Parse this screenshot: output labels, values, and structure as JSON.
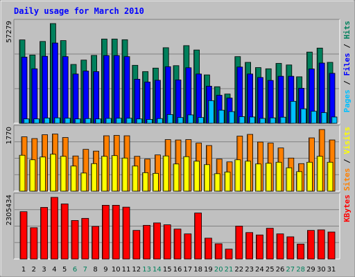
{
  "title": "Daily usage for March 2010",
  "colors": {
    "background": "#c0c0c0",
    "frame_light": "#ffffff",
    "frame_dark": "#808080",
    "title_text": "#0000ff",
    "hits": "#00805c",
    "files": "#0000ff",
    "pages": "#00c0ff",
    "visits": "#ffff00",
    "sites": "#ff8000",
    "kbytes": "#ff0000",
    "weekend_label": "#00805c",
    "weekday_label": "#000000"
  },
  "chart_data": [
    {
      "type": "bar",
      "title": "Daily usage for March 2010",
      "ylabel_max": "57279",
      "ylim": [
        0,
        57279
      ],
      "legend": [
        "Pages",
        "/",
        "Files",
        "/",
        "Hits"
      ],
      "categories": [
        "1",
        "2",
        "3",
        "4",
        "5",
        "6",
        "7",
        "8",
        "9",
        "10",
        "11",
        "12",
        "13",
        "14",
        "15",
        "16",
        "17",
        "18",
        "19",
        "20",
        "21",
        "22",
        "23",
        "24",
        "25",
        "26",
        "27",
        "28",
        "29",
        "30",
        "31"
      ],
      "weekend_days": [
        6,
        7,
        13,
        14,
        20,
        21,
        27,
        28
      ],
      "series": [
        {
          "name": "Hits",
          "values": [
            47900,
            39200,
            47000,
            57279,
            47500,
            33800,
            36300,
            39000,
            48400,
            48400,
            48000,
            33300,
            29700,
            31700,
            43400,
            33100,
            44600,
            42100,
            27800,
            21000,
            16800,
            38300,
            35000,
            32000,
            31300,
            34400,
            33500,
            26700,
            40900,
            43200,
            35000
          ]
        },
        {
          "name": "Files",
          "values": [
            38000,
            31300,
            38500,
            46100,
            38300,
            28300,
            30000,
            29700,
            38900,
            38900,
            38300,
            25300,
            23700,
            24700,
            32500,
            24900,
            31900,
            28300,
            21300,
            16100,
            14500,
            32300,
            28300,
            26300,
            24600,
            27000,
            27000,
            20100,
            31200,
            34600,
            28700
          ]
        },
        {
          "name": "Pages",
          "values": [
            2500,
            2500,
            3000,
            3100,
            2900,
            2500,
            2700,
            2500,
            2800,
            2900,
            2900,
            2500,
            2200,
            2700,
            5000,
            3300,
            4800,
            3300,
            13000,
            7500,
            6700,
            3800,
            3600,
            2800,
            3100,
            3500,
            12600,
            8300,
            6900,
            6100,
            3600
          ]
        }
      ]
    },
    {
      "type": "bar",
      "ylabel_max": "1770",
      "ylim": [
        0,
        1770
      ],
      "legend": [
        "Sites",
        "/",
        "Visits"
      ],
      "categories": [
        "1",
        "2",
        "3",
        "4",
        "5",
        "6",
        "7",
        "8",
        "9",
        "10",
        "11",
        "12",
        "13",
        "14",
        "15",
        "16",
        "17",
        "18",
        "19",
        "20",
        "21",
        "22",
        "23",
        "24",
        "25",
        "26",
        "27",
        "28",
        "29",
        "30",
        "31"
      ],
      "series": [
        {
          "name": "Sites",
          "values": [
            1560,
            1510,
            1620,
            1640,
            1540,
            1010,
            1200,
            1150,
            1590,
            1600,
            1590,
            1000,
            920,
            1040,
            1480,
            1470,
            1480,
            1380,
            1310,
            920,
            840,
            1580,
            1630,
            1410,
            1380,
            1240,
            950,
            790,
            1530,
            1770,
            1470
          ]
        },
        {
          "name": "Visits",
          "values": [
            1030,
            900,
            980,
            1060,
            1000,
            720,
            520,
            790,
            1000,
            1020,
            950,
            720,
            530,
            510,
            1010,
            780,
            990,
            860,
            760,
            500,
            550,
            900,
            860,
            780,
            800,
            830,
            670,
            560,
            830,
            1000,
            830
          ]
        }
      ]
    },
    {
      "type": "bar",
      "ylabel_max": "2305434",
      "ylim": [
        0,
        2305434
      ],
      "legend": [
        "KBytes"
      ],
      "categories": [
        "1",
        "2",
        "3",
        "4",
        "5",
        "6",
        "7",
        "8",
        "9",
        "10",
        "11",
        "12",
        "13",
        "14",
        "15",
        "16",
        "17",
        "18",
        "19",
        "20",
        "21",
        "22",
        "23",
        "24",
        "25",
        "26",
        "27",
        "28",
        "29",
        "30",
        "31"
      ],
      "series": [
        {
          "name": "KBytes",
          "values": [
            1770000,
            1170000,
            1930000,
            2305434,
            2060000,
            1440000,
            1520000,
            1220000,
            2010000,
            2010000,
            1940000,
            1070000,
            1260000,
            1350000,
            1280000,
            1120000,
            940000,
            1720000,
            780000,
            570000,
            370000,
            1230000,
            990000,
            900000,
            1150000,
            940000,
            830000,
            560000,
            1070000,
            1090000,
            1010000
          ]
        }
      ]
    }
  ]
}
